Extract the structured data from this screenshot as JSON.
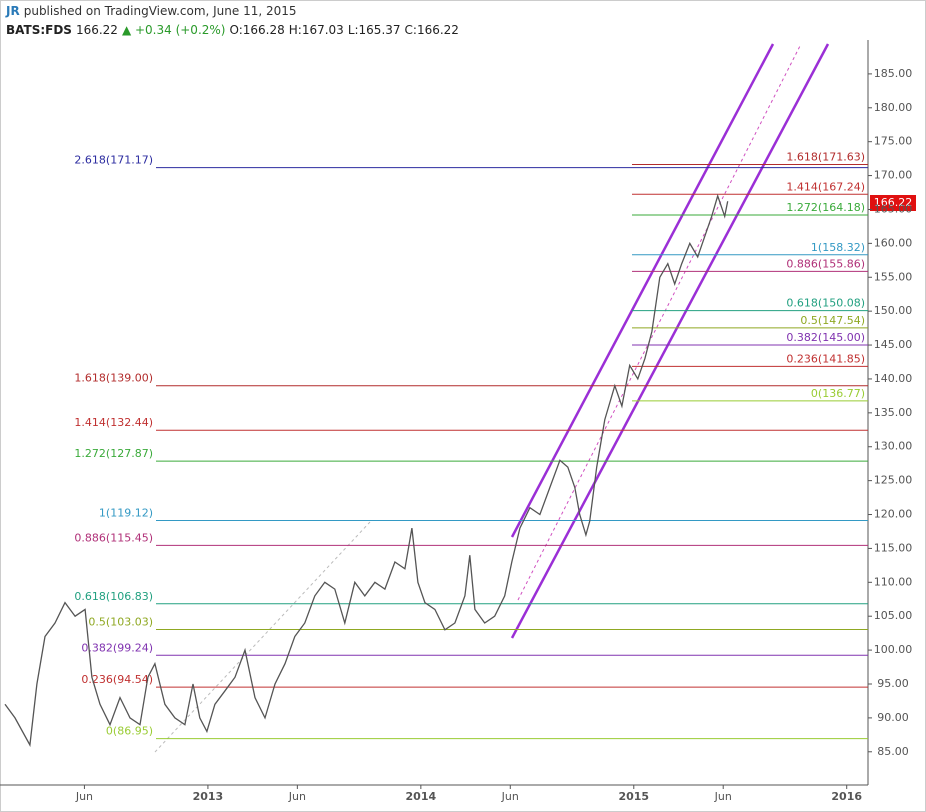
{
  "header": {
    "author": "JR",
    "published": "published on TradingView.com, June 11, 2015",
    "symbol": "BATS:FDS",
    "last": "166.22",
    "change": "+0.34 (+0.2%)",
    "open": "O:166.28",
    "high": "H:167.03",
    "low": "L:165.37",
    "close": "C:166.22"
  },
  "chart_data": {
    "type": "line",
    "color": "#555555",
    "xlim": [
      2012.047,
      2016.1
    ],
    "ylim": [
      80.1,
      190
    ],
    "xticks": [
      {
        "value": 2012.42,
        "label": "Jun"
      },
      {
        "value": 2013,
        "label": "2013"
      },
      {
        "value": 2013.42,
        "label": "Jun"
      },
      {
        "value": 2014,
        "label": "2014"
      },
      {
        "value": 2014.42,
        "label": "Jun"
      },
      {
        "value": 2015,
        "label": "2015"
      },
      {
        "value": 2015.42,
        "label": "Jun"
      },
      {
        "value": 2016,
        "label": "2016"
      }
    ],
    "yticks": [
      {
        "value": 85,
        "label": "85.00"
      },
      {
        "value": 90,
        "label": "90.00"
      },
      {
        "value": 95,
        "label": "95.00"
      },
      {
        "value": 100,
        "label": "100.00"
      },
      {
        "value": 105,
        "label": "105.00"
      },
      {
        "value": 110,
        "label": "110.00"
      },
      {
        "value": 115,
        "label": "115.00"
      },
      {
        "value": 120,
        "label": "120.00"
      },
      {
        "value": 125,
        "label": "125.00"
      },
      {
        "value": 130,
        "label": "130.00"
      },
      {
        "value": 135,
        "label": "135.00"
      },
      {
        "value": 140,
        "label": "140.00"
      },
      {
        "value": 145,
        "label": "145.00"
      },
      {
        "value": 150,
        "label": "150.00"
      },
      {
        "value": 155,
        "label": "155.00"
      },
      {
        "value": 160,
        "label": "160.00"
      },
      {
        "value": 165,
        "label": "165.00"
      },
      {
        "value": 170,
        "label": "170.00"
      },
      {
        "value": 175,
        "label": "175.00"
      },
      {
        "value": 180,
        "label": "180.00"
      },
      {
        "value": 185,
        "label": "185.00"
      }
    ],
    "x": [
      2012.047,
      2012.094,
      2012.164,
      2012.197,
      2012.235,
      2012.282,
      2012.329,
      2012.376,
      2012.423,
      2012.455,
      2012.493,
      2012.54,
      2012.587,
      2012.634,
      2012.681,
      2012.718,
      2012.751,
      2012.798,
      2012.845,
      2012.892,
      2012.93,
      2012.962,
      2012.995,
      2013.033,
      2013.08,
      2013.127,
      2013.174,
      2013.221,
      2013.268,
      2013.315,
      2013.362,
      2013.408,
      2013.455,
      2013.502,
      2013.549,
      2013.596,
      2013.643,
      2013.69,
      2013.737,
      2013.784,
      2013.831,
      2013.878,
      2013.925,
      2013.958,
      2013.986,
      2014.019,
      2014.066,
      2014.113,
      2014.16,
      2014.207,
      2014.23,
      2014.254,
      2014.3,
      2014.347,
      2014.394,
      2014.427,
      2014.465,
      2014.512,
      2014.559,
      2014.606,
      2014.653,
      2014.69,
      2014.723,
      2014.746,
      2014.775,
      2014.793,
      2014.826,
      2014.864,
      2014.911,
      2014.944,
      2014.981,
      2015.019,
      2015.052,
      2015.085,
      2015.122,
      2015.16,
      2015.192,
      2015.225,
      2015.263,
      2015.3,
      2015.333,
      2015.366,
      2015.394,
      2015.427,
      2015.441
    ],
    "values": [
      92,
      90,
      86,
      95,
      102,
      104,
      107,
      105,
      106,
      96,
      92,
      89,
      93,
      90,
      89,
      96,
      98,
      92,
      90,
      89,
      95,
      90,
      88,
      92,
      94,
      96,
      100,
      93,
      90,
      95,
      98,
      102,
      104,
      108,
      110,
      109,
      104,
      110,
      108,
      110,
      109,
      113,
      112,
      118,
      110,
      107,
      106,
      103,
      104,
      108,
      114,
      106,
      104,
      105,
      108,
      113,
      118,
      121,
      120,
      124,
      128,
      127,
      124,
      120,
      117,
      119,
      127,
      134,
      139,
      136,
      142,
      140,
      143,
      147,
      155,
      157,
      154,
      157,
      160,
      158,
      161,
      164,
      167,
      164,
      166.22
    ],
    "fib_left": [
      {
        "label": "2.618(171.17)",
        "value": 171.17,
        "color": "#2c2ca0"
      },
      {
        "label": "1.618(139.00)",
        "value": 139.0,
        "color": "#b22c2c"
      },
      {
        "label": "1.414(132.44)",
        "value": 132.44,
        "color": "#c03030"
      },
      {
        "label": "1.272(127.87)",
        "value": 127.87,
        "color": "#3aaa3a"
      },
      {
        "label": "1(119.12)",
        "value": 119.12,
        "color": "#3399c4"
      },
      {
        "label": "0.886(115.45)",
        "value": 115.45,
        "color": "#b03078"
      },
      {
        "label": "0.618(106.83)",
        "value": 106.83,
        "color": "#22a080"
      },
      {
        "label": "0.5(103.03)",
        "value": 103.03,
        "color": "#8fa822"
      },
      {
        "label": "0.382(99.24)",
        "value": 99.24,
        "color": "#8033b0"
      },
      {
        "label": "0.236(94.54)",
        "value": 94.54,
        "color": "#c03030"
      },
      {
        "label": "0(86.95)",
        "value": 86.95,
        "color": "#99cc33"
      }
    ],
    "fib_right": [
      {
        "label": "1.618(171.63)",
        "value": 171.63,
        "color": "#b22c2c"
      },
      {
        "label": "1.414(167.24)",
        "value": 167.24,
        "color": "#c03030"
      },
      {
        "label": "1.272(164.18)",
        "value": 164.18,
        "color": "#3aaa3a"
      },
      {
        "label": "1(158.32)",
        "value": 158.32,
        "color": "#3399c4"
      },
      {
        "label": "0.886(155.86)",
        "value": 155.86,
        "color": "#b03078"
      },
      {
        "label": "0.618(150.08)",
        "value": 150.08,
        "color": "#22a080"
      },
      {
        "label": "0.5(147.54)",
        "value": 147.54,
        "color": "#8fa822"
      },
      {
        "label": "0.382(145.00)",
        "value": 145.0,
        "color": "#8033b0"
      },
      {
        "label": "0.236(141.85)",
        "value": 141.85,
        "color": "#c03030"
      },
      {
        "label": "0(136.77)",
        "value": 136.77,
        "color": "#99cc33"
      }
    ]
  }
}
